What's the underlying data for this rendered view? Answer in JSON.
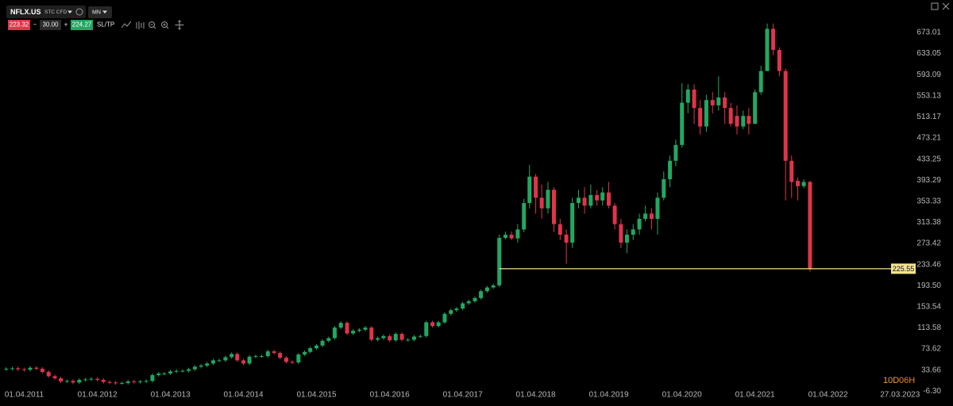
{
  "toolbar": {
    "symbol": "NFLX.US",
    "instrument_type": "STC CFD",
    "interval": "MN",
    "sell_price": "223.32",
    "volume": "30.00",
    "buy_price": "224.27",
    "sltp": "SL/TP",
    "minus": "−",
    "plus": "+"
  },
  "timer": {
    "days": "10D",
    "hours": "06H"
  },
  "chart_data": {
    "type": "candlestick",
    "up_color": "#22a861",
    "down_color": "#e0344b",
    "x": [
      "01.01.2011",
      "01.02.2011",
      "01.03.2011",
      "01.04.2011",
      "01.05.2011",
      "01.06.2011",
      "01.07.2011",
      "01.08.2011",
      "01.09.2011",
      "01.10.2011",
      "01.11.2011",
      "01.12.2011",
      "01.01.2012",
      "01.02.2012",
      "01.03.2012",
      "01.04.2012",
      "01.05.2012",
      "01.06.2012",
      "01.07.2012",
      "01.08.2012",
      "01.09.2012",
      "01.10.2012",
      "01.11.2012",
      "01.12.2012",
      "01.01.2013",
      "01.02.2013",
      "01.03.2013",
      "01.04.2013",
      "01.05.2013",
      "01.06.2013",
      "01.07.2013",
      "01.08.2013",
      "01.09.2013",
      "01.10.2013",
      "01.11.2013",
      "01.12.2013",
      "01.01.2014",
      "01.02.2014",
      "01.03.2014",
      "01.04.2014",
      "01.05.2014",
      "01.06.2014",
      "01.07.2014",
      "01.08.2014",
      "01.09.2014",
      "01.10.2014",
      "01.11.2014",
      "01.12.2014",
      "01.01.2015",
      "01.02.2015",
      "01.03.2015",
      "01.04.2015",
      "01.05.2015",
      "01.06.2015",
      "01.07.2015",
      "01.08.2015",
      "01.09.2015",
      "01.10.2015",
      "01.11.2015",
      "01.12.2015",
      "01.01.2016",
      "01.02.2016",
      "01.03.2016",
      "01.04.2016",
      "01.05.2016",
      "01.06.2016",
      "01.07.2016",
      "01.08.2016",
      "01.09.2016",
      "01.10.2016",
      "01.11.2016",
      "01.12.2016",
      "01.01.2017",
      "01.02.2017",
      "01.03.2017",
      "01.04.2017",
      "01.05.2017",
      "01.06.2017",
      "01.07.2017",
      "01.08.2017",
      "01.09.2017",
      "01.10.2017",
      "01.11.2017",
      "01.12.2017",
      "01.01.2018",
      "01.02.2018",
      "01.03.2018",
      "01.04.2018",
      "01.05.2018",
      "01.06.2018",
      "01.07.2018",
      "01.08.2018",
      "01.09.2018",
      "01.10.2018",
      "01.11.2018",
      "01.12.2018",
      "01.01.2019",
      "01.02.2019",
      "01.03.2019",
      "01.04.2019",
      "01.05.2019",
      "01.06.2019",
      "01.07.2019",
      "01.08.2019",
      "01.09.2019",
      "01.10.2019",
      "01.11.2019",
      "01.12.2019",
      "01.01.2020",
      "01.02.2020",
      "01.03.2020",
      "01.04.2020",
      "01.05.2020",
      "01.06.2020",
      "01.07.2020",
      "01.08.2020",
      "01.09.2020",
      "01.10.2020",
      "01.11.2020",
      "01.12.2020",
      "01.01.2021",
      "01.02.2021",
      "01.03.2021",
      "01.04.2021",
      "01.05.2021",
      "01.06.2021",
      "01.07.2021",
      "01.08.2021",
      "01.09.2021",
      "01.10.2021",
      "01.11.2021",
      "01.12.2021",
      "01.01.2022"
    ],
    "open": [
      35,
      36,
      37,
      35,
      34,
      38,
      36,
      30,
      22,
      18,
      12,
      13,
      10,
      15,
      16,
      17,
      15,
      11,
      10,
      9,
      9,
      12,
      11,
      12,
      13,
      24,
      27,
      27,
      31,
      32,
      32,
      35,
      40,
      42,
      46,
      52,
      52,
      58,
      64,
      52,
      46,
      59,
      60,
      60,
      69,
      66,
      57,
      49,
      48,
      63,
      68,
      75,
      80,
      89,
      94,
      114,
      123,
      103,
      108,
      110,
      114,
      91,
      94,
      98,
      90,
      102,
      91,
      91,
      97,
      98,
      124,
      117,
      124,
      140,
      147,
      150,
      160,
      164,
      170,
      183,
      190,
      194,
      284,
      290,
      283,
      300,
      350,
      400,
      360,
      340,
      375,
      310,
      290,
      275,
      350,
      360,
      345,
      365,
      355,
      370,
      345,
      310,
      275,
      290,
      300,
      320,
      330,
      320,
      360,
      395,
      430,
      460,
      540,
      565,
      530,
      495,
      545,
      535,
      550,
      530,
      515,
      495,
      515,
      500,
      560,
      600,
      680,
      640,
      600,
      430,
      392,
      382,
      390
    ],
    "high": [
      39,
      40,
      40,
      38,
      41,
      41,
      39,
      33,
      25,
      21,
      16,
      16,
      18,
      19,
      20,
      20,
      18,
      14,
      13,
      12,
      15,
      15,
      15,
      16,
      27,
      30,
      30,
      34,
      35,
      35,
      38,
      43,
      45,
      49,
      55,
      55,
      61,
      67,
      67,
      55,
      62,
      63,
      63,
      72,
      72,
      69,
      60,
      52,
      66,
      71,
      78,
      83,
      92,
      97,
      117,
      126,
      126,
      111,
      113,
      117,
      117,
      97,
      101,
      101,
      105,
      105,
      94,
      100,
      101,
      127,
      127,
      127,
      143,
      150,
      153,
      163,
      167,
      173,
      186,
      193,
      197,
      290,
      296,
      296,
      310,
      358,
      422,
      405,
      385,
      390,
      380,
      320,
      300,
      360,
      375,
      380,
      385,
      375,
      380,
      390,
      350,
      320,
      300,
      310,
      330,
      345,
      340,
      370,
      410,
      440,
      470,
      577,
      575,
      575,
      545,
      555,
      560,
      590,
      560,
      540,
      535,
      525,
      530,
      565,
      610,
      690,
      690,
      645,
      605,
      440,
      398,
      395,
      392
    ],
    "low": [
      32,
      33,
      32,
      31,
      31,
      33,
      27,
      19,
      15,
      9,
      9,
      7,
      7,
      12,
      13,
      12,
      8,
      7,
      6,
      6,
      6,
      8,
      8,
      9,
      10,
      21,
      24,
      24,
      28,
      29,
      29,
      32,
      37,
      39,
      43,
      49,
      49,
      55,
      49,
      43,
      43,
      56,
      57,
      57,
      63,
      54,
      46,
      45,
      45,
      60,
      65,
      72,
      77,
      86,
      91,
      111,
      100,
      100,
      105,
      107,
      88,
      88,
      91,
      87,
      87,
      88,
      88,
      88,
      94,
      95,
      114,
      114,
      121,
      137,
      144,
      147,
      157,
      161,
      167,
      180,
      187,
      191,
      281,
      280,
      275,
      295,
      340,
      330,
      320,
      330,
      295,
      280,
      235,
      265,
      340,
      330,
      340,
      345,
      345,
      340,
      300,
      265,
      255,
      280,
      290,
      315,
      300,
      290,
      355,
      380,
      420,
      455,
      520,
      500,
      480,
      485,
      520,
      525,
      500,
      495,
      480,
      490,
      480,
      500,
      555,
      600,
      630,
      590,
      355,
      360,
      355,
      378,
      220
    ],
    "close": [
      36,
      37,
      35,
      34,
      38,
      36,
      30,
      22,
      18,
      12,
      13,
      10,
      15,
      16,
      17,
      15,
      11,
      10,
      9,
      9,
      12,
      11,
      12,
      13,
      24,
      27,
      27,
      31,
      32,
      32,
      35,
      40,
      42,
      46,
      52,
      52,
      58,
      64,
      52,
      46,
      59,
      60,
      60,
      69,
      66,
      57,
      49,
      48,
      63,
      68,
      75,
      80,
      89,
      94,
      114,
      123,
      103,
      108,
      110,
      114,
      91,
      94,
      98,
      90,
      102,
      91,
      91,
      97,
      98,
      124,
      117,
      124,
      140,
      147,
      150,
      160,
      164,
      170,
      183,
      190,
      194,
      284,
      290,
      283,
      300,
      350,
      400,
      360,
      340,
      375,
      310,
      290,
      275,
      350,
      360,
      345,
      365,
      355,
      370,
      345,
      310,
      275,
      290,
      300,
      320,
      330,
      320,
      360,
      395,
      430,
      460,
      540,
      565,
      530,
      495,
      545,
      535,
      550,
      530,
      500,
      495,
      515,
      500,
      560,
      600,
      680,
      640,
      600,
      430,
      390,
      382,
      390,
      225
    ],
    "xlim": [
      "01.12.2010",
      "01.12.2023"
    ],
    "xticks": [
      "01.04.2011",
      "01.04.2012",
      "01.04.2013",
      "01.04.2014",
      "01.04.2015",
      "01.04.2016",
      "01.04.2017",
      "01.04.2018",
      "01.04.2019",
      "01.04.2020",
      "01.04.2021",
      "01.04.2022",
      "27.03.2023"
    ],
    "ylim": [
      -34.5,
      734.6
    ],
    "yticks": [
      673.01,
      633.05,
      593.09,
      553.13,
      513.17,
      473.21,
      433.25,
      393.29,
      353.33,
      313.38,
      273.42,
      233.46,
      {
        "value": 193.5,
        "label": "193.50"
      },
      153.54,
      113.58,
      73.62,
      33.66,
      {
        "value": -6.3,
        "label": "-6.30"
      }
    ],
    "current_price": 225.55,
    "current_price_color": "#f3e48c",
    "grid": false
  }
}
